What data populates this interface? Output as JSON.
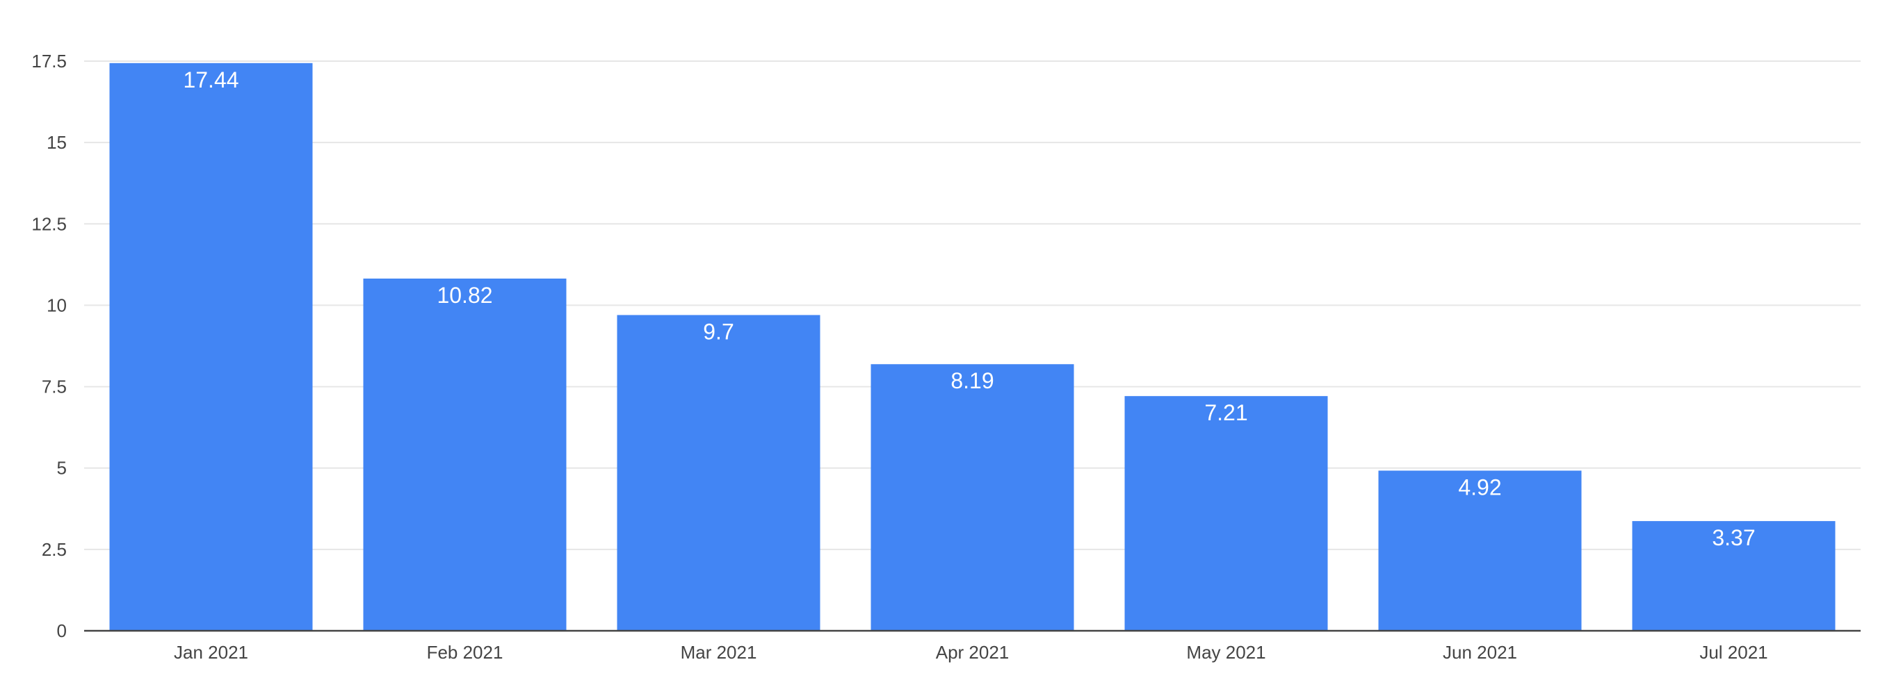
{
  "chart_data": {
    "type": "bar",
    "title": "",
    "xlabel": "",
    "ylabel": "",
    "categories": [
      "Jan 2021",
      "Feb 2021",
      "Mar 2021",
      "Apr 2021",
      "May 2021",
      "Jun 2021",
      "Jul 2021"
    ],
    "values": [
      17.44,
      10.82,
      9.7,
      8.19,
      7.21,
      4.92,
      3.37
    ],
    "ylim": [
      0,
      17.5
    ],
    "yticks": [
      0,
      2.5,
      5,
      7.5,
      10,
      12.5,
      15,
      17.5
    ],
    "ytick_labels": [
      "0",
      "2.5",
      "5",
      "7.5",
      "10",
      "12.5",
      "15",
      "17.5"
    ],
    "data_labels": [
      "17.44",
      "10.82",
      "9.7",
      "8.19",
      "7.21",
      "4.92",
      "3.37"
    ],
    "grid": true,
    "legend": "none",
    "colors": {
      "bar": "#4285f4",
      "grid": "#e6e6e6",
      "axis": "#444444",
      "label": "#ffffff"
    }
  }
}
